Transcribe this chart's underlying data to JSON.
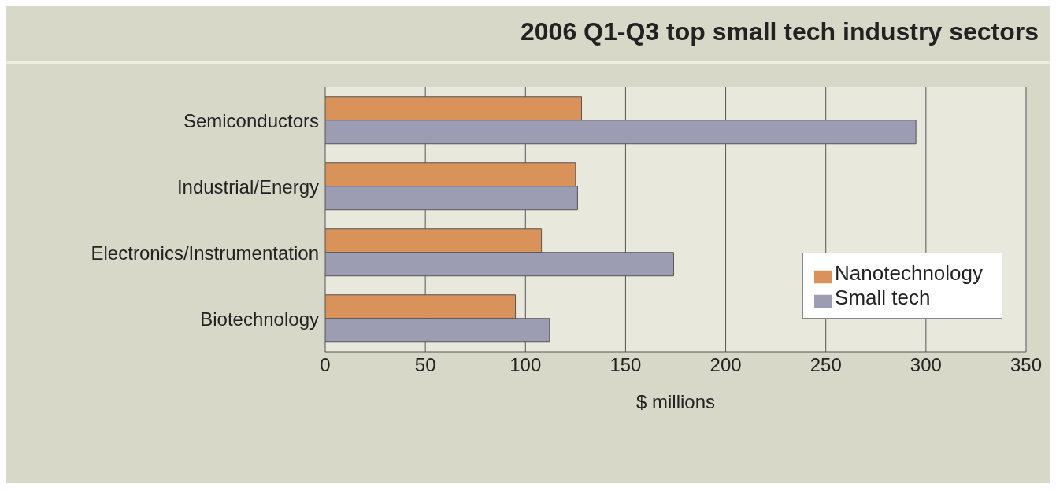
{
  "chart_data": {
    "type": "bar",
    "orientation": "horizontal",
    "title": "2006 Q1-Q3 top small tech industry sectors",
    "xlabel": "$ millions",
    "categories": [
      "Semiconductors",
      "Industrial/Energy",
      "Electronics/Instrumentation",
      "Biotechnology"
    ],
    "series": [
      {
        "name": "Nanotechnology",
        "color": "#d9925a",
        "values": [
          128,
          125,
          108,
          95
        ]
      },
      {
        "name": "Small tech",
        "color": "#9c9cb2",
        "values": [
          295,
          126,
          174,
          112
        ]
      }
    ],
    "xlim": [
      0,
      350
    ],
    "xticks": [
      0,
      50,
      100,
      150,
      200,
      250,
      300,
      350
    ],
    "grid": "x",
    "legend": "right"
  }
}
